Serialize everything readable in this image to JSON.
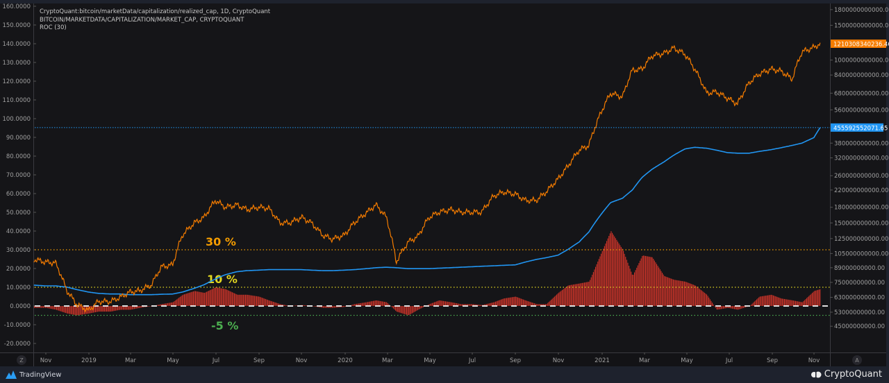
{
  "legend": {
    "line1": "CryptoQuant:bitcoin/marketData/capitalization/realized_cap, 1D, CryptoQuant",
    "line2": "BITCOIN/MARKETDATA/CAPITALIZATION/MARKET_CAP, CRYPTOQUANT",
    "line3": "ROC (30)"
  },
  "footer": {
    "left_brand": "TradingView",
    "right_brand": "CryptoQuant"
  },
  "axis_buttons": {
    "left": "Z",
    "right": "A"
  },
  "colors": {
    "market_cap": "#f57c00",
    "realized_cap": "#2196f3",
    "roc": "#f23b2e",
    "bg": "#151518",
    "line30": "#f59d00",
    "line10": "#e3d820",
    "lineneg5": "#4caf50"
  },
  "chart_data": {
    "type": "line",
    "left_axis": {
      "label_unit": "%",
      "range": [
        -20,
        160
      ],
      "ticks": [
        "160.0000",
        "150.0000",
        "140.0000",
        "130.0000",
        "120.0000",
        "110.0000",
        "100.0000",
        "90.0000",
        "80.0000",
        "70.0000",
        "60.0000",
        "50.0000",
        "40.0000",
        "30.0000",
        "20.0000",
        "10.0000",
        "0.0000",
        "-10.0000",
        "-20.0000"
      ]
    },
    "right_axis": {
      "scale": "log",
      "ticks": [
        "1800000000000.00",
        "1500000000000.00",
        "1000000000000.00",
        "840000000000.00",
        "680000000000.00",
        "560000000000.00",
        "380000000000.00",
        "320000000000.00",
        "260000000000.00",
        "220000000000.00",
        "180000000000.00",
        "150000000000.00",
        "125000000000.00",
        "105000000000.00",
        "89000000000.00",
        "75000000000.00",
        "63000000000.00",
        "53000000000.00",
        "45000000000.00"
      ]
    },
    "x_ticks": [
      "Nov",
      "2019",
      "Mar",
      "May",
      "Jul",
      "Sep",
      "Nov",
      "2020",
      "Mar",
      "May",
      "Jul",
      "Sep",
      "Nov",
      "2021",
      "Mar",
      "May",
      "Jul",
      "Sep",
      "Nov"
    ],
    "dates": [
      "2018-10-15",
      "2018-11-01",
      "2018-11-15",
      "2018-12-01",
      "2018-12-15",
      "2019-01-01",
      "2019-01-15",
      "2019-02-01",
      "2019-02-15",
      "2019-03-01",
      "2019-03-15",
      "2019-04-01",
      "2019-04-15",
      "2019-05-01",
      "2019-05-15",
      "2019-06-01",
      "2019-06-15",
      "2019-07-01",
      "2019-07-15",
      "2019-08-01",
      "2019-08-15",
      "2019-09-01",
      "2019-09-15",
      "2019-10-01",
      "2019-10-15",
      "2019-11-01",
      "2019-11-15",
      "2019-12-01",
      "2019-12-15",
      "2020-01-01",
      "2020-01-15",
      "2020-02-01",
      "2020-02-15",
      "2020-03-01",
      "2020-03-15",
      "2020-04-01",
      "2020-04-15",
      "2020-05-01",
      "2020-05-15",
      "2020-06-01",
      "2020-06-15",
      "2020-07-01",
      "2020-07-15",
      "2020-08-01",
      "2020-08-15",
      "2020-09-01",
      "2020-09-15",
      "2020-10-01",
      "2020-10-15",
      "2020-11-01",
      "2020-11-15",
      "2020-12-01",
      "2020-12-15",
      "2021-01-01",
      "2021-01-15",
      "2021-02-01",
      "2021-02-15",
      "2021-03-01",
      "2021-03-15",
      "2021-04-01",
      "2021-04-15",
      "2021-05-01",
      "2021-05-15",
      "2021-06-01",
      "2021-06-15",
      "2021-07-01",
      "2021-07-15",
      "2021-08-01",
      "2021-08-15",
      "2021-09-01",
      "2021-09-15",
      "2021-10-01",
      "2021-10-15",
      "2021-11-01",
      "2021-11-10"
    ],
    "series": [
      {
        "name": "BITCOIN/MARKETDATA/CAPITALIZATION/MARKET_CAP",
        "unit": "billion USD",
        "axis": "right",
        "values": [
          98,
          95,
          94,
          68,
          58,
          54,
          60,
          60,
          63,
          67,
          68,
          73,
          90,
          92,
          130,
          150,
          160,
          195,
          180,
          185,
          175,
          180,
          178,
          150,
          150,
          160,
          150,
          130,
          124,
          130,
          150,
          168,
          185,
          160,
          95,
          120,
          128,
          160,
          170,
          175,
          170,
          170,
          170,
          205,
          215,
          210,
          195,
          195,
          215,
          250,
          290,
          350,
          370,
          540,
          680,
          650,
          890,
          900,
          1050,
          1080,
          1150,
          1070,
          900,
          680,
          690,
          640,
          600,
          770,
          850,
          900,
          880,
          800,
          1100,
          1160,
          1210
        ]
      },
      {
        "name": "CryptoQuant:bitcoin/marketData/capitalization/realized_cap",
        "unit": "billion USD",
        "axis": "right",
        "values": [
          72.6,
          72,
          72,
          71,
          69,
          67,
          66,
          65.5,
          65.5,
          65,
          65,
          65,
          65.3,
          65.5,
          67,
          70,
          73,
          78,
          82,
          85,
          86,
          86.5,
          87,
          87,
          87,
          87,
          86.5,
          86,
          86,
          86.5,
          87,
          88,
          89,
          89.5,
          89,
          88,
          88,
          88,
          88.5,
          89,
          89.5,
          90,
          90.5,
          91,
          91.5,
          92,
          95,
          98,
          100,
          103,
          110,
          120,
          135,
          165,
          190,
          200,
          220,
          255,
          280,
          305,
          330,
          355,
          362,
          358,
          350,
          340,
          338,
          338,
          345,
          352,
          360,
          370,
          380,
          405,
          455.6
        ]
      },
      {
        "name": "ROC (30)",
        "unit": "%",
        "axis": "left",
        "type": "bar",
        "values": [
          -1,
          -1,
          -2,
          -4,
          -5,
          -4,
          -3,
          -3,
          -2,
          -2,
          -1,
          0,
          1,
          2,
          6,
          8,
          7,
          10,
          9,
          6,
          6,
          5,
          3,
          1,
          0,
          0.5,
          0,
          -1,
          -1,
          -0.5,
          1,
          2,
          3,
          2,
          -3,
          -5,
          -2,
          1,
          3,
          2,
          1,
          1,
          0.5,
          2,
          4,
          5,
          3,
          1,
          1,
          7,
          11,
          12,
          13,
          28,
          40,
          30,
          16,
          27,
          26,
          16,
          14,
          13,
          11,
          6,
          -2,
          -1,
          -2,
          0,
          5,
          6,
          4,
          3,
          2,
          8,
          9
        ]
      }
    ],
    "reference_lines": [
      {
        "label": "30 %",
        "value": 30,
        "color": "#f59d00"
      },
      {
        "label": "10 %",
        "value": 10,
        "color": "#e3d820"
      },
      {
        "label": "-5 %",
        "value": -5,
        "color": "#4caf50"
      },
      {
        "label": "",
        "value": 0,
        "color": "#e0e0e0"
      }
    ],
    "last_values": {
      "market_cap": "1210308340236.46",
      "realized_cap": "455592552071.65"
    }
  }
}
